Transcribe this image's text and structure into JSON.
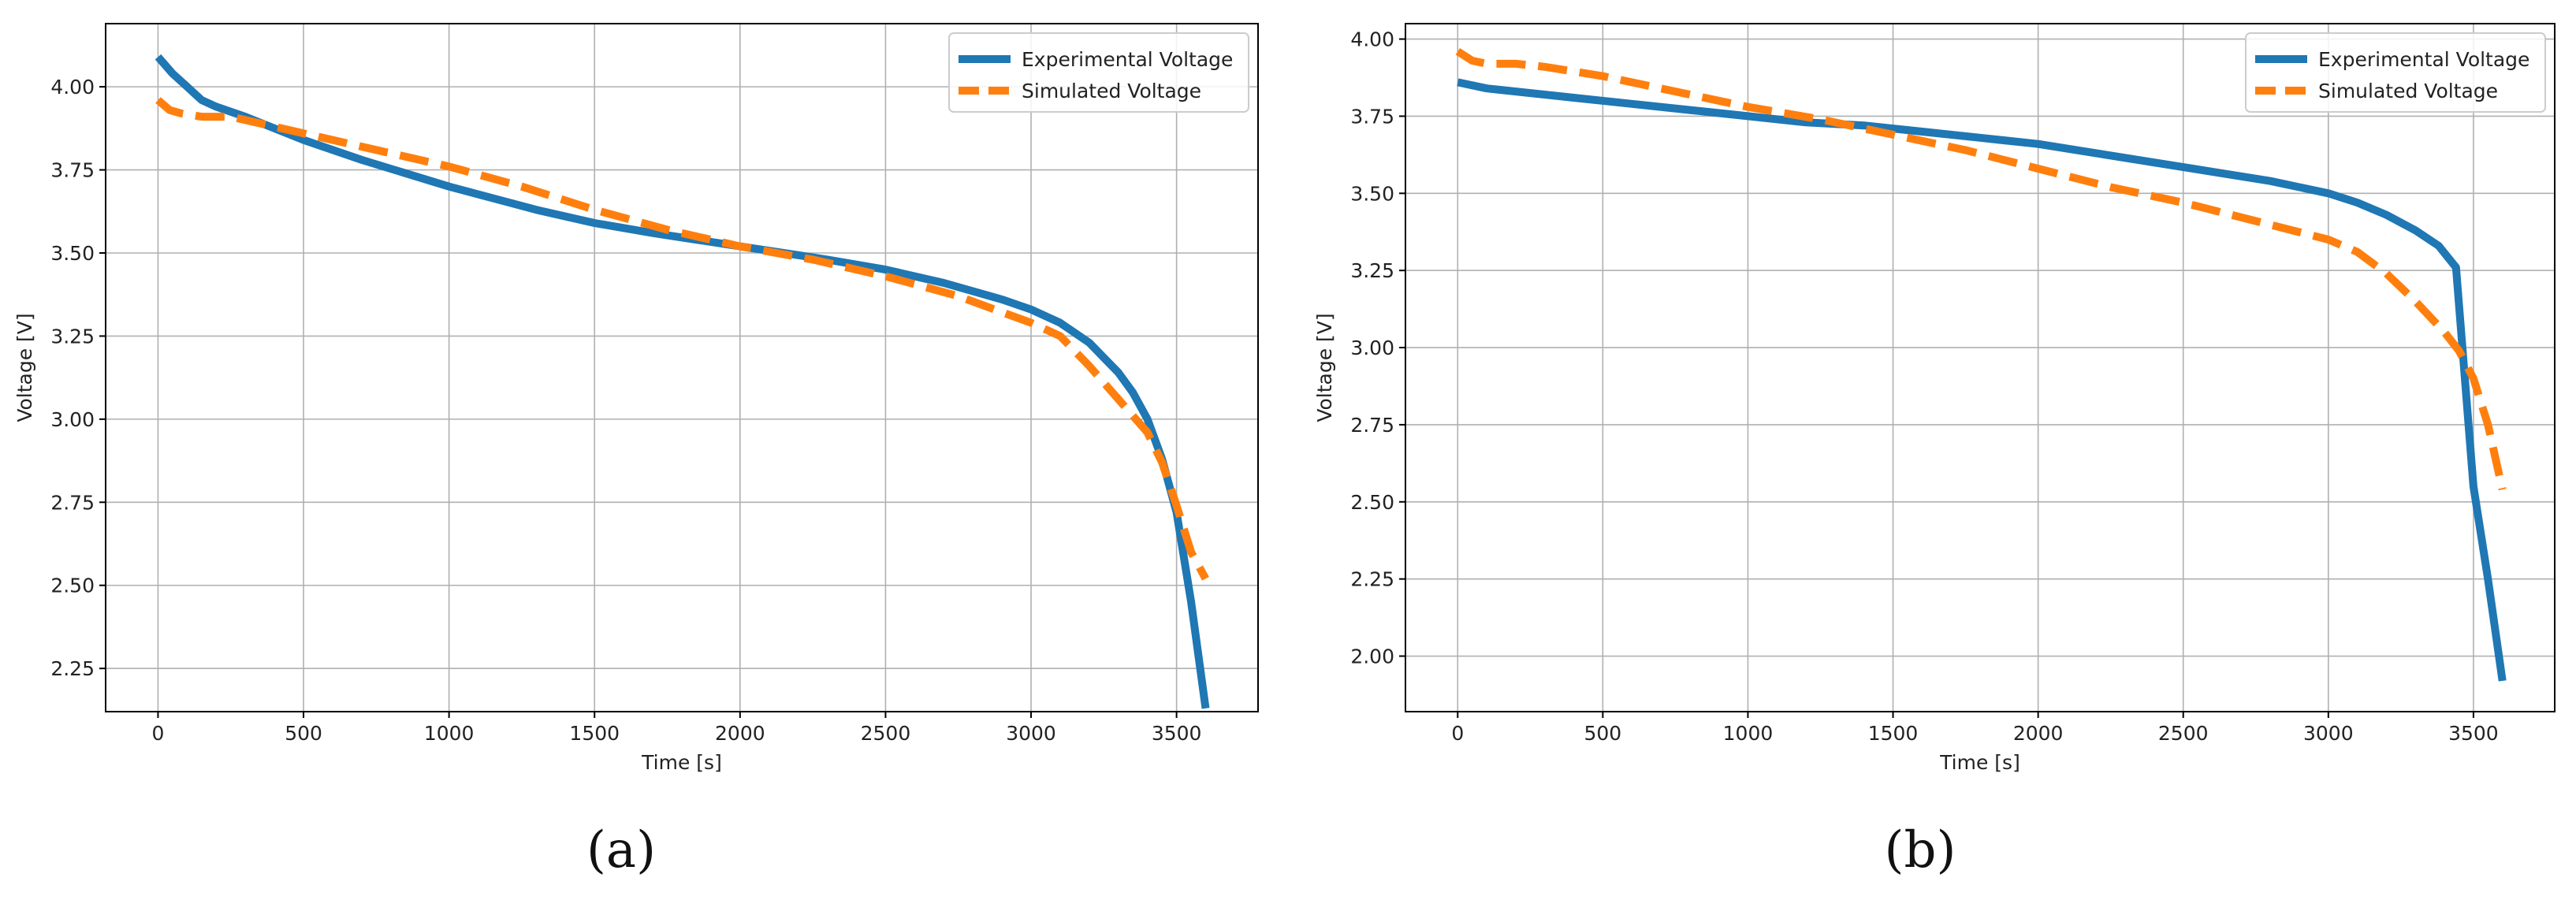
{
  "panels": [
    {
      "label": "(a)"
    },
    {
      "label": "(b)"
    }
  ],
  "colors": {
    "experimental": "#1f77b4",
    "simulated": "#ff7f0e",
    "grid": "#b0b0b0",
    "axis": "#000000"
  },
  "chart_data": [
    {
      "type": "line",
      "panel_label": "(a)",
      "xlabel": "Time [s]",
      "ylabel": "Voltage [V]",
      "xlim": [
        -180,
        3780
      ],
      "ylim": [
        2.12,
        4.19
      ],
      "xticks": [
        0,
        500,
        1000,
        1500,
        2000,
        2500,
        3000,
        3500
      ],
      "yticks": [
        2.25,
        2.5,
        2.75,
        3.0,
        3.25,
        3.5,
        3.75,
        4.0
      ],
      "ytick_labels": [
        "2.25",
        "2.50",
        "2.75",
        "3.00",
        "3.25",
        "3.50",
        "3.75",
        "4.00"
      ],
      "grid": true,
      "legend_position": "top-right",
      "series": [
        {
          "name": "Experimental Voltage",
          "style": "solid",
          "x": [
            0,
            50,
            100,
            150,
            200,
            300,
            500,
            700,
            1000,
            1300,
            1500,
            1700,
            2000,
            2300,
            2500,
            2700,
            2900,
            3000,
            3100,
            3200,
            3300,
            3350,
            3400,
            3450,
            3500,
            3550,
            3600
          ],
          "y": [
            4.09,
            4.04,
            4.0,
            3.96,
            3.94,
            3.91,
            3.84,
            3.78,
            3.7,
            3.63,
            3.59,
            3.56,
            3.52,
            3.48,
            3.45,
            3.41,
            3.36,
            3.33,
            3.29,
            3.23,
            3.14,
            3.08,
            3.0,
            2.88,
            2.72,
            2.45,
            2.13
          ]
        },
        {
          "name": "Simulated Voltage",
          "style": "dashed",
          "x": [
            0,
            40,
            80,
            150,
            250,
            500,
            750,
            1000,
            1250,
            1500,
            1750,
            2000,
            2250,
            2500,
            2750,
            3000,
            3100,
            3200,
            3300,
            3400,
            3450,
            3500,
            3550,
            3600
          ],
          "y": [
            3.96,
            3.93,
            3.92,
            3.91,
            3.91,
            3.86,
            3.81,
            3.76,
            3.7,
            3.63,
            3.57,
            3.52,
            3.48,
            3.43,
            3.37,
            3.29,
            3.25,
            3.16,
            3.06,
            2.96,
            2.87,
            2.74,
            2.6,
            2.52
          ]
        }
      ]
    },
    {
      "type": "line",
      "panel_label": "(b)",
      "xlabel": "Time [s]",
      "ylabel": "Voltage [V]",
      "xlim": [
        -180,
        3780
      ],
      "ylim": [
        1.82,
        4.05
      ],
      "xticks": [
        0,
        500,
        1000,
        1500,
        2000,
        2500,
        3000,
        3500
      ],
      "yticks": [
        2.0,
        2.25,
        2.5,
        2.75,
        3.0,
        3.25,
        3.5,
        3.75,
        4.0
      ],
      "ytick_labels": [
        "2.00",
        "2.25",
        "2.50",
        "2.75",
        "3.00",
        "3.25",
        "3.50",
        "3.75",
        "4.00"
      ],
      "grid": true,
      "legend_position": "top-right",
      "series": [
        {
          "name": "Experimental Voltage",
          "style": "solid",
          "x": [
            0,
            100,
            200,
            400,
            600,
            800,
            1000,
            1200,
            1400,
            1600,
            1800,
            2000,
            2200,
            2400,
            2600,
            2800,
            3000,
            3100,
            3200,
            3300,
            3380,
            3440,
            3500,
            3550,
            3600
          ],
          "y": [
            3.86,
            3.84,
            3.83,
            3.81,
            3.79,
            3.77,
            3.75,
            3.73,
            3.72,
            3.7,
            3.68,
            3.66,
            3.63,
            3.6,
            3.57,
            3.54,
            3.5,
            3.47,
            3.43,
            3.38,
            3.33,
            3.26,
            2.55,
            2.25,
            1.92
          ]
        },
        {
          "name": "Simulated Voltage",
          "style": "dashed",
          "x": [
            0,
            50,
            100,
            200,
            300,
            500,
            750,
            1000,
            1250,
            1500,
            1750,
            2000,
            2250,
            2500,
            2750,
            3000,
            3100,
            3200,
            3300,
            3400,
            3450,
            3500,
            3550,
            3600
          ],
          "y": [
            3.96,
            3.93,
            3.92,
            3.92,
            3.91,
            3.88,
            3.83,
            3.78,
            3.74,
            3.69,
            3.64,
            3.58,
            3.52,
            3.47,
            3.41,
            3.35,
            3.31,
            3.24,
            3.15,
            3.05,
            2.99,
            2.9,
            2.75,
            2.54
          ]
        }
      ]
    }
  ]
}
